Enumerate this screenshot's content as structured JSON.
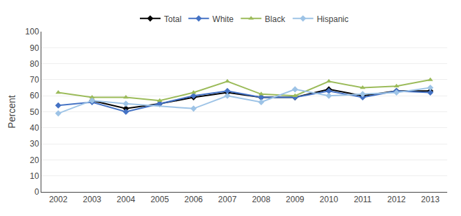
{
  "chart_data": {
    "type": "line",
    "x": [
      2002,
      2003,
      2004,
      2005,
      2006,
      2007,
      2008,
      2009,
      2010,
      2011,
      2012,
      2013
    ],
    "series": [
      {
        "name": "Total",
        "color": "#000000",
        "marker": "diamond",
        "values": [
          null,
          57,
          52,
          55,
          59,
          62,
          59,
          59,
          64,
          60,
          63,
          63
        ]
      },
      {
        "name": "White",
        "color": "#4472C4",
        "marker": "diamond",
        "values": [
          54,
          56,
          50,
          55,
          60,
          63,
          59,
          59,
          63,
          59,
          63,
          62
        ]
      },
      {
        "name": "Black",
        "color": "#9BBB59",
        "marker": "triangle-up",
        "values": [
          62,
          59,
          59,
          57,
          62,
          69,
          61,
          60,
          69,
          65,
          66,
          70
        ]
      },
      {
        "name": "Hispanic",
        "color": "#9DC3E6",
        "marker": "diamond",
        "values": [
          49,
          57,
          55,
          null,
          52,
          60,
          56,
          64,
          60,
          61,
          62,
          65
        ]
      }
    ],
    "ylabel": "Percent",
    "ylim": [
      0,
      100
    ],
    "yticks": [
      0,
      10,
      20,
      30,
      40,
      50,
      60,
      70,
      80,
      90,
      100
    ],
    "xlim": [
      2001.5,
      2013.5
    ],
    "xticks": [
      2002,
      2003,
      2004,
      2005,
      2006,
      2007,
      2008,
      2009,
      2010,
      2011,
      2012,
      2013
    ],
    "grid": "y",
    "legend": "top"
  }
}
